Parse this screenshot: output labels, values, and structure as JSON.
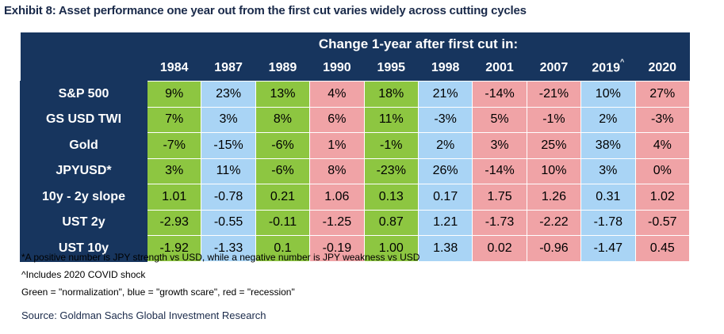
{
  "title": "Exhibit 8: Asset performance one year out from the first cut varies widely across cutting cycles",
  "table": {
    "super_header": "Change 1-year after first cut in:",
    "years": [
      "1984",
      "1987",
      "1989",
      "1990",
      "1995",
      "1998",
      "2001",
      "2007",
      "2019",
      "2020"
    ],
    "year_2019_marker": "^",
    "rows": [
      {
        "label": "S&P 500",
        "values": [
          "9%",
          "23%",
          "13%",
          "4%",
          "18%",
          "21%",
          "-14%",
          "-21%",
          "10%",
          "27%"
        ]
      },
      {
        "label": "GS USD TWI",
        "values": [
          "7%",
          "3%",
          "8%",
          "6%",
          "11%",
          "-3%",
          "5%",
          "-1%",
          "2%",
          "-3%"
        ]
      },
      {
        "label": "Gold",
        "values": [
          "-7%",
          "-15%",
          "-6%",
          "1%",
          "-1%",
          "2%",
          "3%",
          "25%",
          "38%",
          "4%"
        ]
      },
      {
        "label": "JPYUSD*",
        "values": [
          "3%",
          "11%",
          "-6%",
          "8%",
          "-23%",
          "26%",
          "-14%",
          "10%",
          "3%",
          "0%"
        ]
      },
      {
        "label": "10y - 2y slope",
        "values": [
          "1.01",
          "-0.78",
          "0.21",
          "1.06",
          "0.13",
          "0.17",
          "1.75",
          "1.26",
          "0.31",
          "1.02"
        ]
      },
      {
        "label": "UST 2y",
        "values": [
          "-2.93",
          "-0.55",
          "-0.11",
          "-1.25",
          "0.87",
          "1.21",
          "-1.73",
          "-2.22",
          "-1.78",
          "-0.57"
        ]
      },
      {
        "label": "UST 10y",
        "values": [
          "-1.92",
          "-1.33",
          "0.1",
          "-0.19",
          "1.00",
          "1.38",
          "0.02",
          "-0.96",
          "-1.47",
          "0.45"
        ]
      }
    ],
    "column_regimes": [
      "normalization",
      "growth scare",
      "normalization",
      "recession",
      "normalization",
      "growth scare",
      "recession",
      "recession",
      "growth scare",
      "recession"
    ],
    "regime_colors": {
      "normalization": "#8dc641",
      "growth scare": "#a9d4f5",
      "recession": "#f0a3a6"
    }
  },
  "footnotes": [
    "*A positive number is JPY strength vs USD, while a negative number is JPY weakness vs USD",
    "^Includes 2020 COVID shock",
    "Green = \"normalization\", blue = \"growth scare\", red = \"recession\""
  ],
  "source": "Source: Goldman Sachs Global Investment Research"
}
